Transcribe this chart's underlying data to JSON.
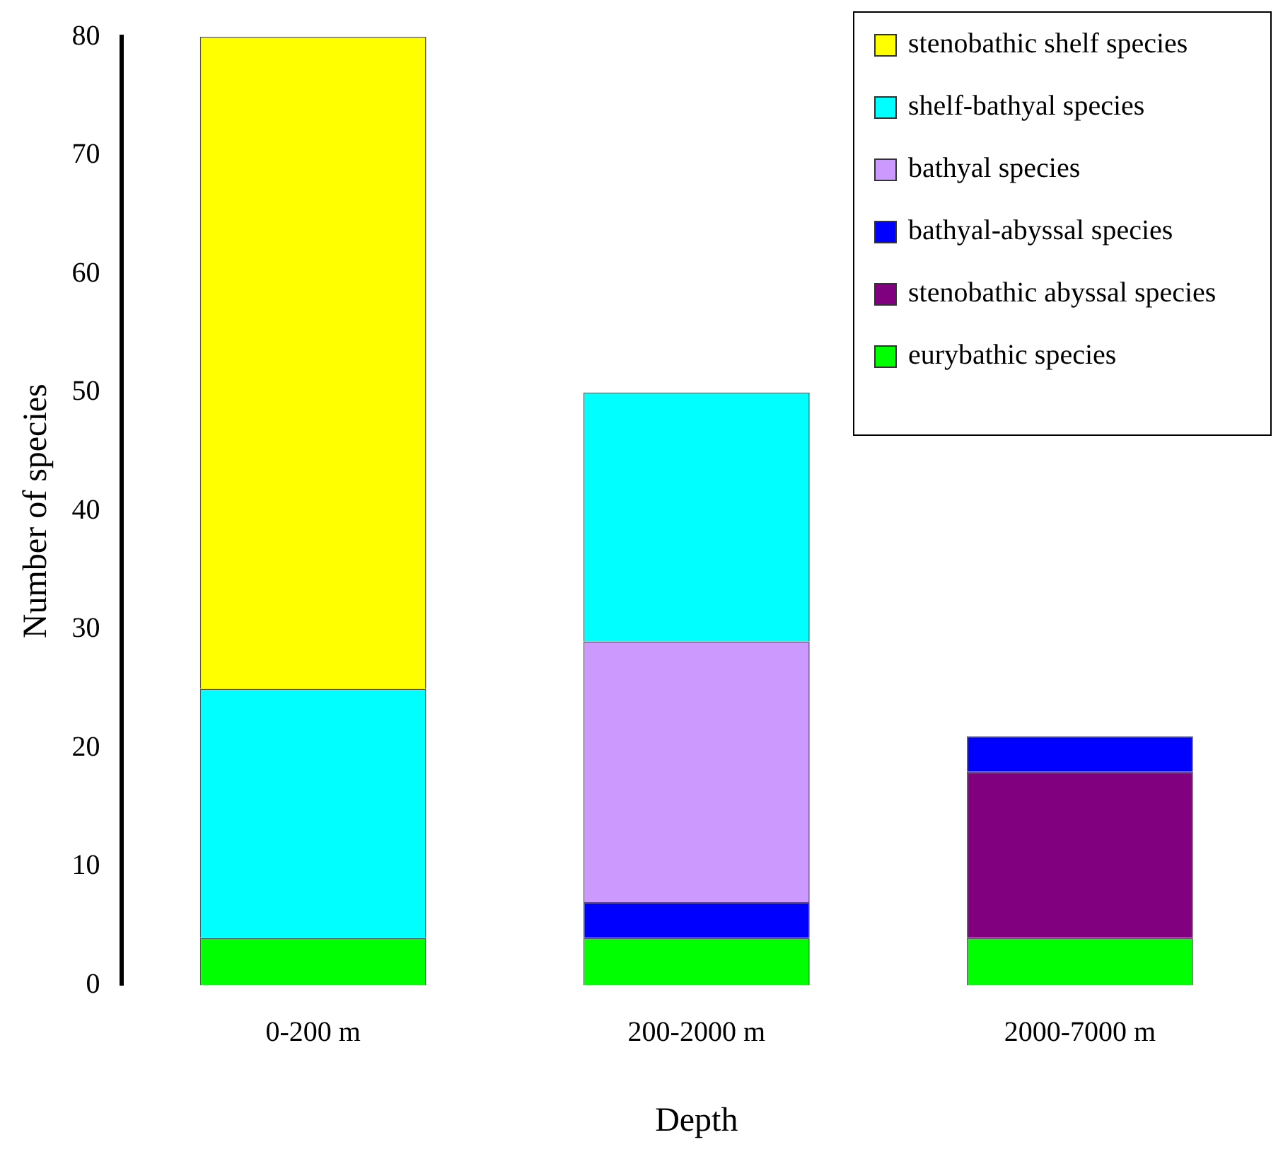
{
  "chart_data": {
    "type": "bar",
    "stacked": true,
    "xlabel": "Depth",
    "ylabel": "Number of species",
    "categories": [
      "0-200 m",
      "200-2000 m",
      "2000-7000 m"
    ],
    "series": [
      {
        "name": "eurybathic species",
        "color": "#00ff00",
        "values": [
          4,
          4,
          4
        ]
      },
      {
        "name": "stenobathic abyssal species",
        "color": "#800080",
        "values": [
          0,
          0,
          14
        ]
      },
      {
        "name": "bathyal-abyssal species",
        "color": "#0000ff",
        "values": [
          0,
          3,
          3
        ]
      },
      {
        "name": "bathyal species",
        "color": "#cc99ff",
        "values": [
          0,
          22,
          0
        ]
      },
      {
        "name": "shelf-bathyal species",
        "color": "#00ffff",
        "values": [
          21,
          21,
          0
        ]
      },
      {
        "name": "stenobathic shelf species",
        "color": "#ffff00",
        "values": [
          55,
          0,
          0
        ]
      }
    ],
    "ylim": [
      0,
      80
    ],
    "yticks": [
      0,
      10,
      20,
      30,
      40,
      50,
      60,
      70,
      80
    ],
    "grid": false,
    "legend": "top right"
  }
}
